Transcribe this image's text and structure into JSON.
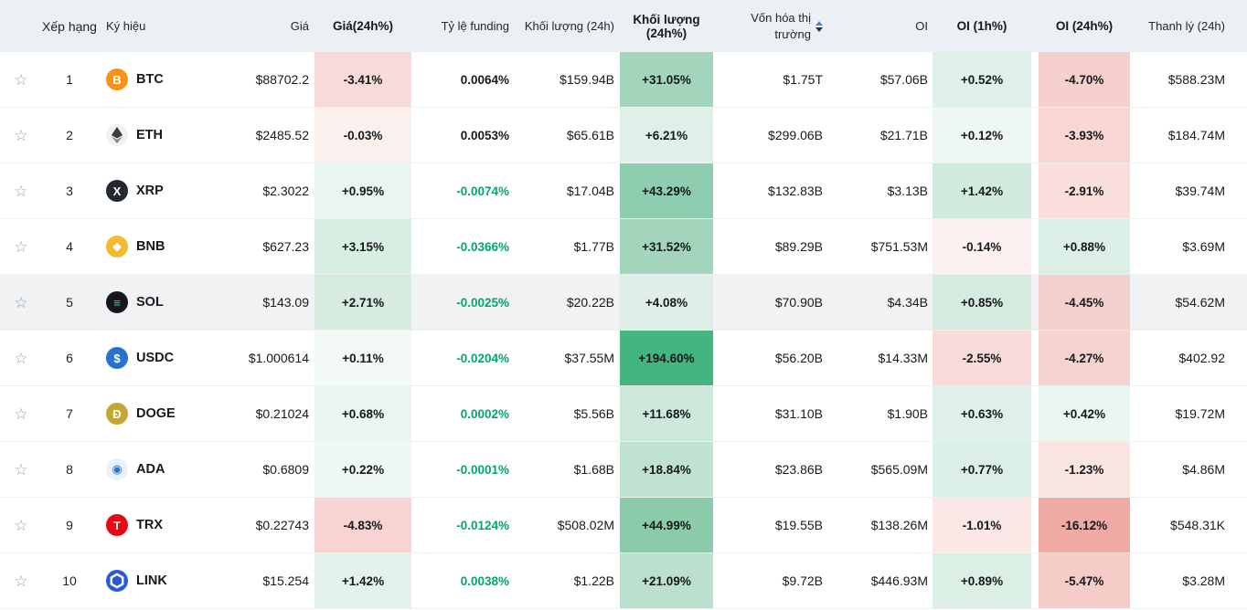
{
  "table": {
    "columns": [
      {
        "label": "Xếp hạng"
      },
      {
        "label": "Ký hiệu"
      },
      {
        "label": "Giá"
      },
      {
        "label": "Giá(24h%)"
      },
      {
        "label": "Tỷ lệ funding"
      },
      {
        "label": "Khối lượng (24h)"
      },
      {
        "label": "Khối lượng (24h%)"
      },
      {
        "label": "Vốn hóa thị trường"
      },
      {
        "label": "OI"
      },
      {
        "label": "OI (1h%)"
      },
      {
        "label": "OI (24h%)"
      },
      {
        "label": "Thanh lý (24h)"
      }
    ],
    "sort": {
      "column": "Vốn hóa thị trường",
      "up_color": "#4285f4",
      "down_color": "#2b3139"
    }
  },
  "colors": {
    "header_bg": "#eceff4",
    "row_highlight_bg": "#f1f2f4",
    "text_primary": "#17191c",
    "green_text": "#03a66d",
    "star": "#9aa4af"
  },
  "rows": [
    {
      "rank": "1",
      "symbol": "BTC",
      "icon": {
        "glyph": "B",
        "bg": "#f7931a",
        "fg": "#ffffff"
      },
      "price": "$88702.2",
      "change24h": {
        "text": "-3.41%",
        "bg": "#f8dad8"
      },
      "funding": {
        "text": "0.0064%",
        "green": false
      },
      "volume24h": "$159.94B",
      "volumePct": {
        "text": "+31.05%",
        "bg": "#a3d5bd"
      },
      "marketCap": "$1.75T",
      "oi": "$57.06B",
      "oi1h": {
        "text": "+0.52%",
        "bg": "#dff1e8"
      },
      "oi24h": {
        "text": "-4.70%",
        "bg": "#f6d0cd"
      },
      "liquidation": "$588.23M",
      "highlighted": false
    },
    {
      "rank": "2",
      "symbol": "ETH",
      "icon": {
        "svg": "eth",
        "bg": "#eff1f5"
      },
      "price": "$2485.52",
      "change24h": {
        "text": "-0.03%",
        "bg": "#fcf0ef"
      },
      "funding": {
        "text": "0.0053%",
        "green": false
      },
      "volume24h": "$65.61B",
      "volumePct": {
        "text": "+6.21%",
        "bg": "#def0e8"
      },
      "marketCap": "$299.06B",
      "oi": "$21.71B",
      "oi1h": {
        "text": "+0.12%",
        "bg": "#eef7f3"
      },
      "oi24h": {
        "text": "-3.93%",
        "bg": "#f7d6d3"
      },
      "liquidation": "$184.74M",
      "highlighted": false
    },
    {
      "rank": "3",
      "symbol": "XRP",
      "icon": {
        "glyph": "X",
        "bg": "#23292f",
        "fg": "#ffffff"
      },
      "price": "$2.3022",
      "change24h": {
        "text": "+0.95%",
        "bg": "#e9f5ef"
      },
      "funding": {
        "text": "-0.0074%",
        "green": true
      },
      "volume24h": "$17.04B",
      "volumePct": {
        "text": "+43.29%",
        "bg": "#8ecdaf"
      },
      "marketCap": "$132.83B",
      "oi": "$3.13B",
      "oi1h": {
        "text": "+1.42%",
        "bg": "#d2ebdf"
      },
      "oi24h": {
        "text": "-2.91%",
        "bg": "#f9dedb"
      },
      "liquidation": "$39.74M",
      "highlighted": false
    },
    {
      "rank": "4",
      "symbol": "BNB",
      "icon": {
        "glyph": "◆",
        "bg": "#f3ba2f",
        "fg": "#ffffff"
      },
      "price": "$627.23",
      "change24h": {
        "text": "+3.15%",
        "bg": "#d9efe4"
      },
      "funding": {
        "text": "-0.0366%",
        "green": true
      },
      "volume24h": "$1.77B",
      "volumePct": {
        "text": "+31.52%",
        "bg": "#a2d5bc"
      },
      "marketCap": "$89.29B",
      "oi": "$751.53M",
      "oi1h": {
        "text": "-0.14%",
        "bg": "#fdf2f1"
      },
      "oi24h": {
        "text": "+0.88%",
        "bg": "#dcefe6"
      },
      "liquidation": "$3.69M",
      "highlighted": false
    },
    {
      "rank": "5",
      "symbol": "SOL",
      "icon": {
        "glyph": "≡",
        "bg": "#17161d",
        "fg": "#2bd9a2"
      },
      "price": "$143.09",
      "change24h": {
        "text": "+2.71%",
        "bg": "#d8ebe1"
      },
      "funding": {
        "text": "-0.0025%",
        "green": true
      },
      "volume24h": "$20.22B",
      "volumePct": {
        "text": "+4.08%",
        "bg": "#dfeee7"
      },
      "marketCap": "$70.90B",
      "oi": "$4.34B",
      "oi1h": {
        "text": "+0.85%",
        "bg": "#d6ebdf"
      },
      "oi24h": {
        "text": "-4.45%",
        "bg": "#f3d1ce"
      },
      "liquidation": "$54.62M",
      "highlighted": true
    },
    {
      "rank": "6",
      "symbol": "USDC",
      "icon": {
        "glyph": "$",
        "bg": "#2775ca",
        "fg": "#ffffff"
      },
      "price": "$1.000614",
      "change24h": {
        "text": "+0.11%",
        "bg": "#f3faf6"
      },
      "funding": {
        "text": "-0.0204%",
        "green": true
      },
      "volume24h": "$37.55M",
      "volumePct": {
        "text": "+194.60%",
        "bg": "#43b57f"
      },
      "marketCap": "$56.20B",
      "oi": "$14.33M",
      "oi1h": {
        "text": "-2.55%",
        "bg": "#f9dcda"
      },
      "oi24h": {
        "text": "-4.27%",
        "bg": "#f7d3d0"
      },
      "liquidation": "$402.92",
      "highlighted": false
    },
    {
      "rank": "7",
      "symbol": "DOGE",
      "icon": {
        "glyph": "Ð",
        "bg": "#c3a634",
        "fg": "#ffffff"
      },
      "price": "$0.21024",
      "change24h": {
        "text": "+0.68%",
        "bg": "#ecf6f1"
      },
      "funding": {
        "text": "0.0002%",
        "green": true
      },
      "volume24h": "$5.56B",
      "volumePct": {
        "text": "+11.68%",
        "bg": "#cde8da"
      },
      "marketCap": "$31.10B",
      "oi": "$1.90B",
      "oi1h": {
        "text": "+0.63%",
        "bg": "#def0e7"
      },
      "oi24h": {
        "text": "+0.42%",
        "bg": "#e9f5ef"
      },
      "liquidation": "$19.72M",
      "highlighted": false
    },
    {
      "rank": "8",
      "symbol": "ADA",
      "icon": {
        "glyph": "◉",
        "bg": "#e9f1fb",
        "fg": "#2a71d0"
      },
      "price": "$0.6809",
      "change24h": {
        "text": "+0.22%",
        "bg": "#f0f8f4"
      },
      "funding": {
        "text": "-0.0001%",
        "green": true
      },
      "volume24h": "$1.68B",
      "volumePct": {
        "text": "+18.84%",
        "bg": "#bfe2d1"
      },
      "marketCap": "$23.86B",
      "oi": "$565.09M",
      "oi1h": {
        "text": "+0.77%",
        "bg": "#dcefe6"
      },
      "oi24h": {
        "text": "-1.23%",
        "bg": "#fbe5e3"
      },
      "liquidation": "$4.86M",
      "highlighted": false
    },
    {
      "rank": "9",
      "symbol": "TRX",
      "icon": {
        "glyph": "T",
        "bg": "#e50915",
        "fg": "#ffffff"
      },
      "price": "$0.22743",
      "change24h": {
        "text": "-4.83%",
        "bg": "#f7d4d1"
      },
      "funding": {
        "text": "-0.0124%",
        "green": true
      },
      "volume24h": "$508.02M",
      "volumePct": {
        "text": "+44.99%",
        "bg": "#8bcbac"
      },
      "marketCap": "$19.55B",
      "oi": "$138.26M",
      "oi1h": {
        "text": "-1.01%",
        "bg": "#fbe7e6"
      },
      "oi24h": {
        "text": "-16.12%",
        "bg": "#f0aaa4"
      },
      "liquidation": "$548.31K",
      "highlighted": false
    },
    {
      "rank": "10",
      "symbol": "LINK",
      "icon": {
        "svg": "hexagon",
        "bg": "#2a5ada"
      },
      "price": "$15.254",
      "change24h": {
        "text": "+1.42%",
        "bg": "#e3f2ea"
      },
      "funding": {
        "text": "0.0038%",
        "green": true
      },
      "volume24h": "$1.22B",
      "volumePct": {
        "text": "+21.09%",
        "bg": "#bbe0ce"
      },
      "marketCap": "$9.72B",
      "oi": "$446.93M",
      "oi1h": {
        "text": "+0.89%",
        "bg": "#dbefe5"
      },
      "oi24h": {
        "text": "-5.47%",
        "bg": "#f5ccc8"
      },
      "liquidation": "$3.28M",
      "highlighted": false
    }
  ]
}
